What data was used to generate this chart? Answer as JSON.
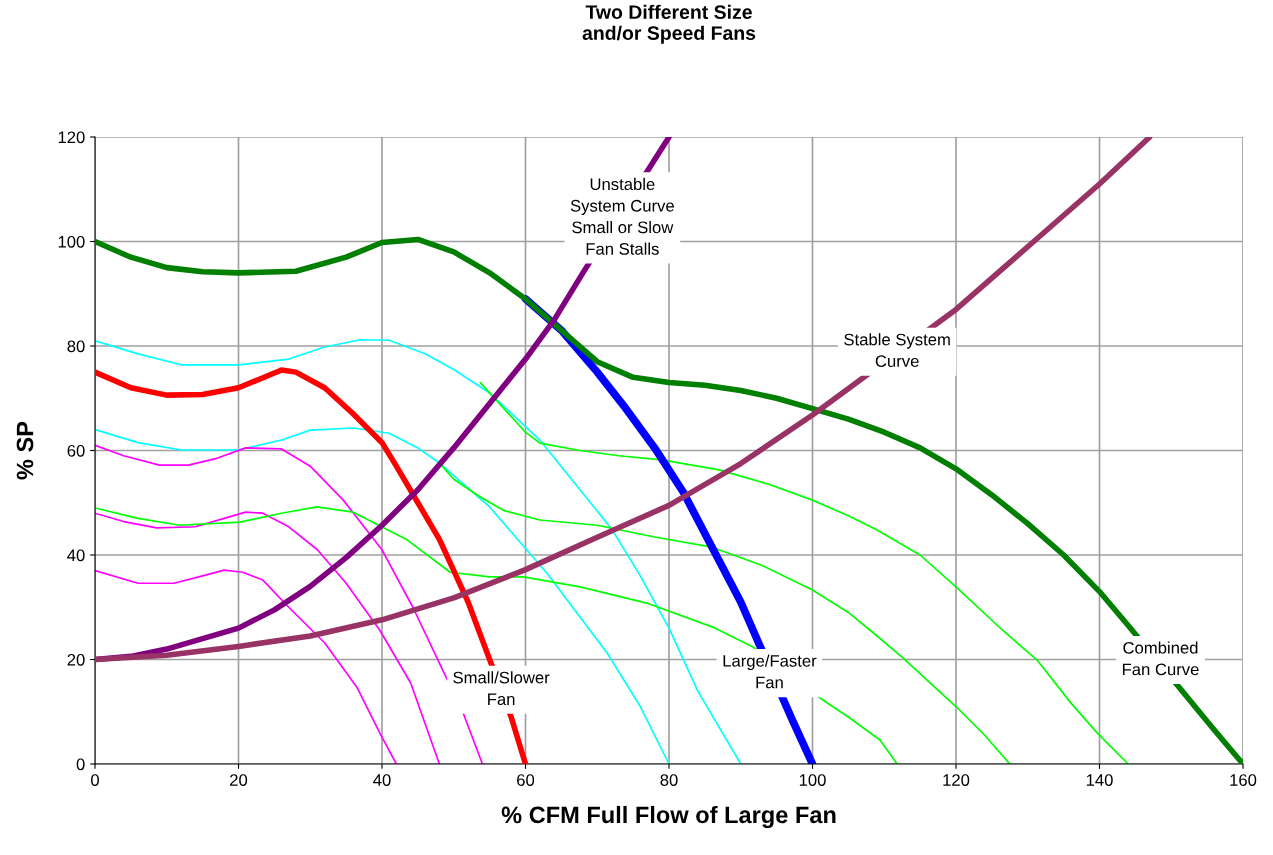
{
  "chart_data": {
    "type": "line",
    "title": "Two Different Size\nand/or Speed Fans",
    "xlabel": "% CFM Full Flow of Large Fan",
    "ylabel": "% SP",
    "xlim": [
      0,
      160
    ],
    "xticks": [
      0,
      20,
      40,
      60,
      80,
      100,
      120,
      140,
      160
    ],
    "ylim": [
      0,
      120
    ],
    "yticks": [
      0,
      20,
      40,
      60,
      80,
      100,
      120
    ],
    "grid": true,
    "legend": false,
    "marker": "none",
    "line_style": "solid",
    "series": [
      {
        "color": "#007f00",
        "x": [
          0,
          5,
          10,
          15,
          20,
          28,
          35,
          40,
          45,
          50,
          55,
          60,
          65,
          70,
          75,
          80,
          85,
          90,
          95,
          100,
          105,
          110,
          115,
          120,
          125,
          130,
          135,
          140,
          144,
          156,
          160
        ],
        "values": [
          100,
          97,
          95,
          94.2,
          94,
          94.3,
          97,
          99.8,
          100.4,
          98,
          94,
          89,
          83,
          77,
          74,
          73,
          72.5,
          71.5,
          70,
          68,
          66,
          63.5,
          60.5,
          56.5,
          51.5,
          46,
          40,
          33,
          26.5,
          6.5,
          0
        ]
      },
      {
        "color": "#ff0000",
        "x": [
          0,
          5,
          10,
          15,
          20,
          26,
          28,
          32,
          36,
          40,
          42,
          45,
          48,
          50,
          52,
          55,
          58,
          60
        ],
        "values": [
          75,
          72,
          70.6,
          70.7,
          72,
          75.4,
          75,
          72,
          67,
          61.5,
          57,
          50,
          43,
          37,
          31,
          20,
          9,
          0
        ]
      },
      {
        "color": "#0000ff",
        "x": [
          60,
          65,
          70,
          74,
          78,
          82,
          86,
          90,
          97,
          100
        ],
        "values": [
          89,
          83,
          75,
          68,
          60.5,
          52,
          41.5,
          31,
          9,
          0
        ]
      },
      {
        "color": "#800080",
        "x": [
          0,
          5,
          10,
          15,
          20,
          25,
          30,
          35,
          40,
          45,
          50,
          55,
          60,
          64,
          68,
          80
        ],
        "values": [
          20,
          20.6,
          22,
          24,
          26,
          29.5,
          34,
          39.5,
          45.7,
          52.5,
          60.5,
          69,
          77.5,
          85,
          94,
          120
        ]
      },
      {
        "color": "#993366",
        "x": [
          0,
          10,
          20,
          30,
          40,
          50,
          60,
          70,
          80,
          90,
          100,
          120,
          130,
          140,
          147
        ],
        "values": [
          20,
          20.8,
          22.5,
          24.5,
          27.6,
          31.8,
          37.2,
          43.4,
          49.5,
          57.5,
          66.8,
          87,
          99,
          111,
          120
        ]
      },
      {
        "color": "#00ffff",
        "x": [
          0,
          6,
          12,
          20,
          27,
          32,
          37,
          41,
          46,
          50,
          55,
          62,
          67,
          72,
          76,
          80,
          84,
          90
        ],
        "values": [
          81,
          78.5,
          76.4,
          76.4,
          77.5,
          79.8,
          81.2,
          81.1,
          78.5,
          75.5,
          71,
          62,
          53.5,
          45,
          36,
          26,
          14,
          0
        ]
      },
      {
        "color": "#00ffff",
        "x": [
          0,
          6,
          12,
          20,
          26,
          30,
          36,
          41,
          45,
          48,
          55,
          63,
          71.4,
          76,
          80
        ],
        "values": [
          64,
          61.5,
          60.1,
          60.1,
          62,
          63.9,
          64.3,
          63.3,
          60.5,
          57.6,
          49.2,
          36.5,
          21.2,
          11,
          0
        ]
      },
      {
        "color": "#ff00ff",
        "x": [
          0,
          4,
          9,
          13,
          17,
          21,
          26,
          30,
          34.6,
          40,
          44.3,
          48,
          51.3,
          54
        ],
        "values": [
          61,
          59,
          57.2,
          57.2,
          58.5,
          60.5,
          60.3,
          57,
          50.5,
          41,
          30,
          19.3,
          9.8,
          0
        ]
      },
      {
        "color": "#ff00ff",
        "x": [
          0,
          4,
          8.6,
          14,
          18,
          21,
          23.4,
          27,
          31,
          35,
          39.7,
          44,
          48
        ],
        "values": [
          48,
          46.4,
          45.2,
          45.4,
          47,
          48.2,
          48,
          45.4,
          41,
          34.6,
          25.6,
          15.5,
          0
        ]
      },
      {
        "color": "#ff00ff",
        "x": [
          0,
          6,
          11,
          15,
          18,
          20.6,
          23.4,
          27,
          32,
          36.5,
          39.7,
          42
        ],
        "values": [
          37,
          34.6,
          34.6,
          36,
          37.1,
          36.7,
          35.2,
          30,
          23.2,
          14.7,
          5.9,
          0
        ]
      },
      {
        "color": "#00ff00",
        "x": [
          0,
          6,
          11.8,
          20.2,
          26,
          30.9,
          36,
          43.5,
          49.5,
          55,
          59.7,
          67.6,
          76.9,
          86.1,
          91.7,
          101.5,
          105,
          109.4,
          111.8
        ],
        "values": [
          49,
          47,
          45.7,
          46.3,
          48,
          49.2,
          48.2,
          42.9,
          36.7,
          35.8,
          35.8,
          33.9,
          30.8,
          26.2,
          22.4,
          12.2,
          9,
          4.6,
          0
        ]
      },
      {
        "color": "#00ff00",
        "x": [
          48,
          50,
          53.7,
          57,
          62,
          70,
          77.8,
          86,
          93,
          100,
          105,
          109,
          112.6,
          116,
          120,
          124,
          127.5
        ],
        "values": [
          57.6,
          54.5,
          51.1,
          48.5,
          46.7,
          45.7,
          43.5,
          41.5,
          38,
          33.3,
          29,
          24.5,
          20.3,
          16,
          11,
          5.5,
          0
        ]
      },
      {
        "color": "#00ff00",
        "x": [
          53.7,
          57,
          60,
          62,
          67.6,
          73,
          79,
          87,
          94,
          100,
          105,
          109,
          115,
          120,
          126.5,
          131.3,
          136,
          139.7,
          144
        ],
        "values": [
          73,
          68,
          63.5,
          61.4,
          60,
          59,
          58.2,
          56.3,
          53.5,
          50.5,
          47.5,
          44.8,
          40,
          33.9,
          25.6,
          19.9,
          11.7,
          5.9,
          0
        ]
      }
    ],
    "annotations": [
      {
        "text": "Unstable\nSystem Curve\nSmall or Slow\nFan Stalls",
        "x": 73.5,
        "y": 104.5
      },
      {
        "text": "Stable System\nCurve",
        "x": 111.8,
        "y": 78.9
      },
      {
        "text": "Small/Slower\nFan",
        "x": 56.6,
        "y": 14.2
      },
      {
        "text": "Large/Faster\nFan",
        "x": 94,
        "y": 17.4
      },
      {
        "text": "Combined\nFan Curve",
        "x": 148.5,
        "y": 19.9
      }
    ]
  }
}
